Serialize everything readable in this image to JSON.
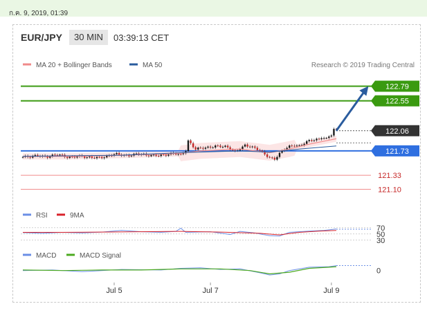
{
  "header": {
    "timestamp": "ก.ค. 9, 2019, 01:39",
    "pair": "EUR/JPY",
    "timeframe": "30 MIN",
    "time": "03:39:13 CET"
  },
  "colors": {
    "resistance": "#3a9a10",
    "pivot": "#2f6fe0",
    "support": "#f08a8a",
    "arrow": "#2a5c9e",
    "price_box": "#333333",
    "candle_up": "#1a1a1a",
    "candle_down": "#c62828",
    "ma20": "#f08a8a",
    "ma50": "#2a5c9e",
    "rsi": "#6b8fe6",
    "rsi_ma": "#d9232b",
    "macd": "#6b8fe6",
    "macd_signal": "#4caa20"
  },
  "chart_data": [
    {
      "type": "candlestick",
      "legend": [
        {
          "name": "MA 20 + Bollinger Bands",
          "color": "#f08a8a"
        },
        {
          "name": "MA 50",
          "color": "#2a5c9e"
        }
      ],
      "credit": "Research © 2019 Trading Central",
      "x_ticks": [
        "Jul 5",
        "Jul 7",
        "Jul 9"
      ],
      "ylim": [
        120.98,
        122.92
      ],
      "levels": [
        {
          "label": "122.79",
          "value": 122.79,
          "kind": "resistance"
        },
        {
          "label": "122.55",
          "value": 122.55,
          "kind": "resistance"
        },
        {
          "label": "121.73",
          "value": 121.73,
          "kind": "pivot"
        },
        {
          "label": "121.33",
          "value": 121.33,
          "kind": "support"
        },
        {
          "label": "121.10",
          "value": 121.1,
          "kind": "support"
        }
      ],
      "current_price": "122.06",
      "close_path": [
        [
          0,
          121.63
        ],
        [
          3,
          121.62
        ],
        [
          6,
          121.66
        ],
        [
          10,
          121.64
        ],
        [
          14,
          121.66
        ],
        [
          18,
          121.63
        ],
        [
          22,
          121.65
        ],
        [
          26,
          121.61
        ],
        [
          30,
          121.63
        ],
        [
          34,
          121.64
        ],
        [
          38,
          121.67
        ],
        [
          42,
          121.66
        ],
        [
          46,
          121.68
        ],
        [
          50,
          121.65
        ],
        [
          54,
          121.67
        ],
        [
          58,
          121.66
        ],
        [
          62,
          121.68
        ],
        [
          64,
          121.67
        ],
        [
          66,
          121.75
        ],
        [
          67,
          121.9
        ],
        [
          68,
          121.85
        ],
        [
          70,
          121.75
        ],
        [
          74,
          121.78
        ],
        [
          78,
          121.82
        ],
        [
          82,
          121.79
        ],
        [
          86,
          121.72
        ],
        [
          88,
          121.78
        ],
        [
          90,
          121.83
        ],
        [
          93,
          121.78
        ],
        [
          96,
          121.73
        ],
        [
          98,
          121.68
        ],
        [
          100,
          121.63
        ],
        [
          102,
          121.6
        ],
        [
          104,
          121.68
        ],
        [
          106,
          121.75
        ],
        [
          108,
          121.8
        ],
        [
          110,
          121.83
        ],
        [
          112,
          121.82
        ],
        [
          114,
          121.86
        ],
        [
          116,
          121.89
        ],
        [
          118,
          121.9
        ],
        [
          120,
          121.92
        ],
        [
          121,
          121.96
        ],
        [
          123,
          121.94
        ],
        [
          124,
          121.98
        ],
        [
          125,
          122.0
        ],
        [
          126,
          122.08
        ],
        [
          127,
          122.06
        ]
      ],
      "ma20": [
        [
          0,
          121.64
        ],
        [
          20,
          121.64
        ],
        [
          40,
          121.66
        ],
        [
          64,
          121.69
        ],
        [
          72,
          121.73
        ],
        [
          88,
          121.76
        ],
        [
          100,
          121.7
        ],
        [
          108,
          121.76
        ],
        [
          116,
          121.84
        ],
        [
          127,
          121.93
        ]
      ],
      "ma50": [
        [
          0,
          121.64
        ],
        [
          40,
          121.66
        ],
        [
          64,
          121.7
        ],
        [
          88,
          121.73
        ],
        [
          100,
          121.71
        ],
        [
          112,
          121.76
        ],
        [
          127,
          121.81
        ]
      ],
      "forecast_arrow": {
        "from": [
          127,
          122.06
        ],
        "to": [
          140,
          122.79
        ]
      }
    },
    {
      "type": "line",
      "legend": [
        {
          "name": "RSI",
          "color": "#6b8fe6"
        },
        {
          "name": "9MA",
          "color": "#d9232b"
        }
      ],
      "y_ticks": [
        "70",
        "50",
        "30"
      ],
      "ylim": [
        25,
        85
      ],
      "rsi": [
        [
          0,
          54
        ],
        [
          8,
          52
        ],
        [
          16,
          55
        ],
        [
          24,
          53
        ],
        [
          32,
          56
        ],
        [
          40,
          61
        ],
        [
          48,
          57
        ],
        [
          56,
          55
        ],
        [
          62,
          58
        ],
        [
          64,
          68
        ],
        [
          66,
          55
        ],
        [
          76,
          57
        ],
        [
          84,
          48
        ],
        [
          88,
          58
        ],
        [
          94,
          53
        ],
        [
          100,
          44
        ],
        [
          104,
          43
        ],
        [
          108,
          55
        ],
        [
          116,
          59
        ],
        [
          122,
          61
        ],
        [
          127,
          66
        ]
      ],
      "rsi_ma": [
        [
          0,
          55
        ],
        [
          16,
          55
        ],
        [
          32,
          56
        ],
        [
          48,
          57
        ],
        [
          64,
          58
        ],
        [
          80,
          56
        ],
        [
          96,
          52
        ],
        [
          104,
          47
        ],
        [
          112,
          55
        ],
        [
          120,
          59
        ],
        [
          127,
          61
        ]
      ]
    },
    {
      "type": "line",
      "legend": [
        {
          "name": "MACD",
          "color": "#6b8fe6"
        },
        {
          "name": "MACD Signal",
          "color": "#4caa20"
        }
      ],
      "y_ticks": [
        "0"
      ],
      "ylim": [
        -0.18,
        0.16
      ],
      "macd": [
        [
          0,
          0.0
        ],
        [
          12,
          0.01
        ],
        [
          24,
          -0.02
        ],
        [
          40,
          0.02
        ],
        [
          56,
          0.01
        ],
        [
          64,
          0.04
        ],
        [
          72,
          0.05
        ],
        [
          80,
          0.02
        ],
        [
          88,
          0.03
        ],
        [
          96,
          -0.04
        ],
        [
          100,
          -0.08
        ],
        [
          104,
          -0.06
        ],
        [
          108,
          0.0
        ],
        [
          116,
          0.06
        ],
        [
          124,
          0.07
        ],
        [
          127,
          0.09
        ]
      ],
      "macd_signal": [
        [
          0,
          0.01
        ],
        [
          16,
          0.0
        ],
        [
          32,
          0.01
        ],
        [
          48,
          0.01
        ],
        [
          64,
          0.03
        ],
        [
          80,
          0.03
        ],
        [
          92,
          0.0
        ],
        [
          100,
          -0.06
        ],
        [
          108,
          -0.03
        ],
        [
          116,
          0.04
        ],
        [
          124,
          0.06
        ],
        [
          127,
          0.07
        ]
      ]
    }
  ]
}
